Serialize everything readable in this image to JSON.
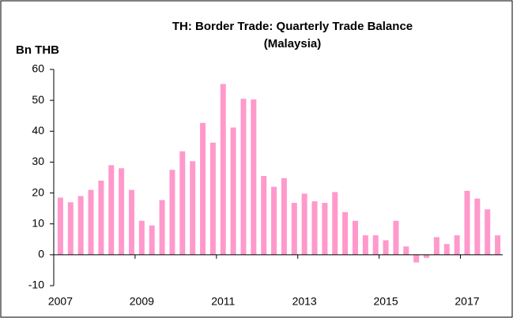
{
  "chart_data": {
    "type": "bar",
    "title": "TH: Border Trade: Quarterly Trade Balance",
    "subtitle": "(Malaysia)",
    "y_label": "Bn THB",
    "categories": [
      "2007",
      null,
      null,
      null,
      null,
      null,
      null,
      null,
      "2009",
      null,
      null,
      null,
      null,
      null,
      null,
      null,
      "2011",
      null,
      null,
      null,
      null,
      null,
      null,
      null,
      "2013",
      null,
      null,
      null,
      null,
      null,
      null,
      null,
      "2015",
      null,
      null,
      null,
      null,
      null,
      null,
      null,
      "2017",
      null,
      null,
      null
    ],
    "values": [
      18.5,
      17,
      19,
      21,
      24,
      29,
      28,
      21,
      11,
      9.5,
      17.7,
      27.5,
      33.5,
      30.3,
      42.7,
      36.3,
      55.3,
      41.2,
      50.5,
      50.3,
      25.5,
      22,
      24.8,
      16.8,
      19.8,
      17.3,
      16.8,
      20.3,
      13.8,
      11,
      6.3,
      6.3,
      4.7,
      11,
      2.7,
      -2.5,
      -1,
      5.7,
      3.5,
      6.3,
      20.7,
      18.2,
      14.7,
      6.3
    ],
    "color": "#ff99cc",
    "ylim": [
      -10,
      60
    ],
    "yticks": [
      -10,
      0,
      10,
      20,
      30,
      40,
      50,
      60
    ]
  }
}
